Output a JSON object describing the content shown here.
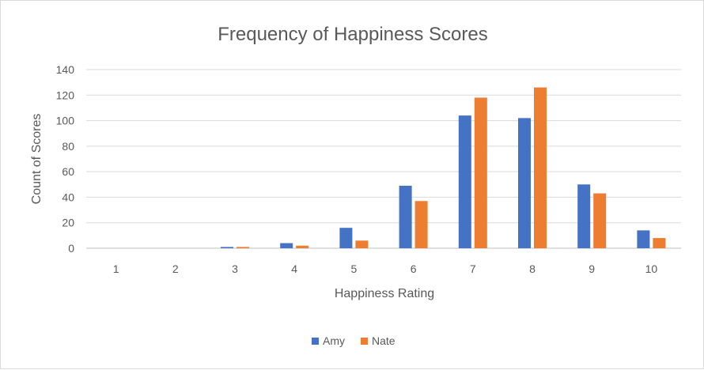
{
  "chart_data": {
    "type": "bar",
    "title": "Frequency of Happiness Scores",
    "xlabel": "Happiness Rating",
    "ylabel": "Count of Scores",
    "categories": [
      "1",
      "2",
      "3",
      "4",
      "5",
      "6",
      "7",
      "8",
      "9",
      "10"
    ],
    "series": [
      {
        "name": "Amy",
        "color": "#4472c4",
        "values": [
          0,
          0,
          1,
          4,
          16,
          49,
          104,
          102,
          50,
          14
        ]
      },
      {
        "name": "Nate",
        "color": "#ed7d31",
        "values": [
          0,
          0,
          1,
          2,
          6,
          37,
          118,
          126,
          43,
          8
        ]
      }
    ],
    "ylim": [
      0,
      140
    ],
    "yticks": [
      "0",
      "20",
      "40",
      "60",
      "80",
      "100",
      "120",
      "140"
    ],
    "grid": true,
    "legend_position": "bottom"
  }
}
